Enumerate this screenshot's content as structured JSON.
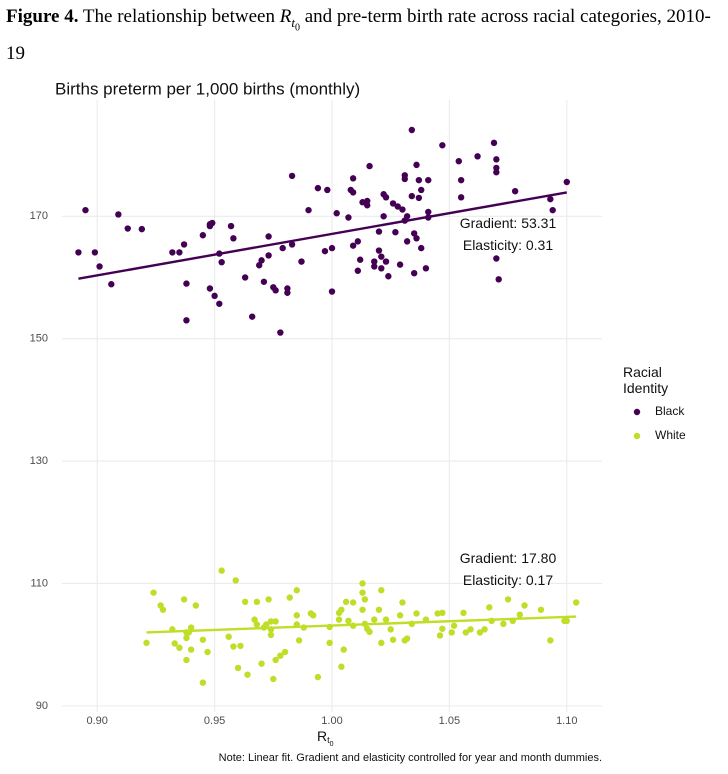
{
  "figure_caption": {
    "label": "Figure 4.",
    "text_before": "The relationship between",
    "symbol": "R",
    "subscript": "t",
    "sub_subscript": "0",
    "text_after": "and pre-term birth rate across racial categories, 2010-19"
  },
  "chart_data": {
    "type": "scatter",
    "y_label": "Births preterm per 1,000 births (monthly)",
    "x_label": {
      "symbol": "R",
      "subscript": "t",
      "sub_subscript": "0"
    },
    "note": "Note: Linear fit. Gradient and elasticity controlled for year and month dummies.",
    "legend_title": "Racial Identity",
    "legend_position": "right",
    "grid": true,
    "xlim": [
      0.885,
      1.115
    ],
    "xticks": [
      {
        "value": 0.9,
        "label": "0.90"
      },
      {
        "value": 0.95,
        "label": "0.95"
      },
      {
        "value": 1.0,
        "label": "1.00"
      },
      {
        "value": 1.05,
        "label": "1.05"
      },
      {
        "value": 1.1,
        "label": "1.10"
      }
    ],
    "ylim": [
      89,
      189
    ],
    "yticks": [
      90,
      110,
      130,
      150,
      170
    ],
    "series": [
      {
        "name": "Black",
        "color": "#440154",
        "annotation": [
          "Gradient: 53.31",
          "Elasticity: 0.31"
        ],
        "fit_x": [
          0.892,
          1.1
        ],
        "fit_values": [
          159.8,
          173.9
        ],
        "x": [
          0.892,
          0.895,
          0.899,
          0.901,
          0.906,
          0.909,
          0.913,
          0.919,
          0.932,
          0.935,
          0.937,
          0.938,
          0.938,
          0.945,
          0.948,
          0.948,
          0.948,
          0.949,
          0.952,
          0.953,
          0.952,
          0.95,
          0.957,
          0.958,
          0.963,
          0.966,
          0.969,
          0.97,
          0.973,
          0.971,
          0.973,
          0.975,
          0.976,
          0.978,
          0.979,
          0.981,
          0.981,
          0.983,
          0.983,
          0.987,
          0.99,
          0.994,
          0.998,
          0.997,
          1.0,
          1.0,
          1.002,
          1.007,
          1.008,
          1.009,
          1.009,
          1.009,
          1.011,
          1.011,
          1.012,
          1.013,
          1.015,
          1.015,
          1.016,
          1.018,
          1.018,
          1.02,
          1.02,
          1.021,
          1.021,
          1.022,
          1.022,
          1.023,
          1.023,
          1.024,
          1.026,
          1.027,
          1.028,
          1.029,
          1.03,
          1.031,
          1.031,
          1.031,
          1.032,
          1.032,
          1.034,
          1.035,
          1.034,
          1.035,
          1.036,
          1.036,
          1.037,
          1.037,
          1.038,
          1.038,
          1.04,
          1.041,
          1.041,
          1.041,
          1.047,
          1.054,
          1.055,
          1.055,
          1.062,
          1.069,
          1.07,
          1.07,
          1.07,
          1.07,
          1.071,
          1.078,
          1.093,
          1.094,
          1.1
        ],
        "values": [
          164.1,
          171.0,
          164.1,
          161.8,
          158.9,
          170.3,
          168.0,
          167.9,
          164.1,
          164.1,
          165.4,
          153.0,
          159.0,
          166.9,
          168.7,
          168.4,
          158.2,
          168.9,
          163.9,
          162.5,
          155.7,
          157.0,
          168.4,
          166.4,
          160.0,
          153.6,
          162.0,
          162.8,
          166.7,
          159.3,
          163.6,
          158.4,
          157.9,
          151.0,
          164.8,
          158.2,
          157.5,
          165.4,
          176.6,
          162.6,
          171.0,
          174.6,
          174.3,
          164.3,
          157.7,
          164.8,
          170.5,
          169.8,
          174.3,
          176.2,
          173.9,
          165.2,
          165.9,
          161.1,
          162.9,
          172.3,
          171.8,
          172.5,
          178.2,
          162.6,
          161.8,
          164.4,
          167.5,
          161.5,
          163.4,
          170.0,
          173.6,
          173.1,
          162.6,
          160.2,
          172.1,
          167.4,
          171.6,
          162.1,
          171.1,
          176.7,
          176.1,
          169.3,
          170.0,
          165.9,
          184.1,
          160.7,
          173.3,
          167.2,
          178.4,
          166.4,
          175.9,
          173.0,
          174.3,
          164.8,
          161.5,
          169.8,
          175.9,
          170.7,
          181.6,
          179.0,
          175.9,
          173.1,
          179.8,
          182.0,
          179.3,
          177.9,
          177.2,
          163.1,
          159.7,
          174.1,
          172.8,
          171.0,
          175.6
        ]
      },
      {
        "name": "White",
        "color": "#bede28",
        "annotation": [
          "Gradient: 17.80",
          "Elasticity: 0.17"
        ],
        "fit_x": [
          0.921,
          1.104
        ],
        "fit_values": [
          102.0,
          104.6
        ],
        "x": [
          0.921,
          0.924,
          0.927,
          0.928,
          0.932,
          0.933,
          0.935,
          0.937,
          0.938,
          0.938,
          0.938,
          0.939,
          0.94,
          0.94,
          0.942,
          0.945,
          0.945,
          0.947,
          0.953,
          0.956,
          0.958,
          0.959,
          0.96,
          0.961,
          0.963,
          0.964,
          0.967,
          0.968,
          0.968,
          0.97,
          0.971,
          0.972,
          0.973,
          0.974,
          0.974,
          0.974,
          0.975,
          0.976,
          0.976,
          0.978,
          0.98,
          0.982,
          0.985,
          0.985,
          0.985,
          0.986,
          0.988,
          0.991,
          0.992,
          0.994,
          0.999,
          0.999,
          1.003,
          1.003,
          1.004,
          1.004,
          1.005,
          1.006,
          1.007,
          1.009,
          1.009,
          1.013,
          1.013,
          1.013,
          1.014,
          1.014,
          1.015,
          1.016,
          1.018,
          1.02,
          1.021,
          1.021,
          1.023,
          1.025,
          1.026,
          1.029,
          1.03,
          1.031,
          1.032,
          1.034,
          1.036,
          1.04,
          1.045,
          1.046,
          1.047,
          1.047,
          1.051,
          1.052,
          1.057,
          1.056,
          1.059,
          1.063,
          1.065,
          1.067,
          1.068,
          1.073,
          1.075,
          1.077,
          1.08,
          1.082,
          1.089,
          1.093,
          1.099,
          1.1,
          1.104
        ],
        "values": [
          100.3,
          108.5,
          106.4,
          105.7,
          102.5,
          100.2,
          99.5,
          107.4,
          101.1,
          102.0,
          97.5,
          102.0,
          99.2,
          102.8,
          106.4,
          100.8,
          93.8,
          98.8,
          112.1,
          101.3,
          99.7,
          110.5,
          96.2,
          99.8,
          107.0,
          95.1,
          104.1,
          107.0,
          103.3,
          96.9,
          102.8,
          103.3,
          107.4,
          103.8,
          101.6,
          102.5,
          94.4,
          97.5,
          103.8,
          98.2,
          98.8,
          107.7,
          104.8,
          108.9,
          103.3,
          100.7,
          102.8,
          105.1,
          104.8,
          94.7,
          102.9,
          100.3,
          104.1,
          105.2,
          105.7,
          96.4,
          99.2,
          107.0,
          103.9,
          106.9,
          103.1,
          110.0,
          108.5,
          105.7,
          107.4,
          103.4,
          102.6,
          102.1,
          104.1,
          105.7,
          100.3,
          108.9,
          104.1,
          102.5,
          100.8,
          104.8,
          106.9,
          100.7,
          101.0,
          103.4,
          105.1,
          104.1,
          105.1,
          101.5,
          102.6,
          105.2,
          102.0,
          103.1,
          102.0,
          105.2,
          102.5,
          102.0,
          102.5,
          106.1,
          103.9,
          103.4,
          107.4,
          103.9,
          104.9,
          106.4,
          105.7,
          100.7,
          103.9,
          103.9,
          106.9
        ]
      }
    ]
  }
}
